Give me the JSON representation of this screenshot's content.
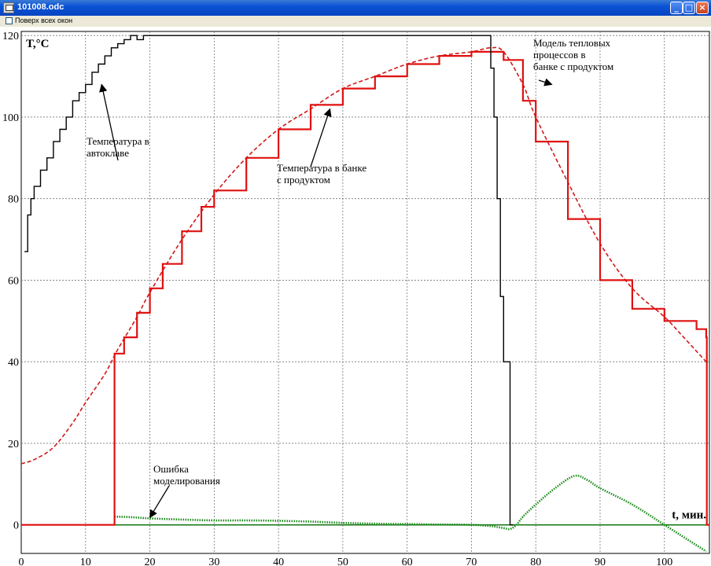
{
  "window": {
    "title": "101008.odc",
    "minimize_glyph": "_",
    "maximize_glyph": "□",
    "close_glyph": "×"
  },
  "toolbar": {
    "always_on_top_label": "Поверх всех окон",
    "always_on_top_checked": false
  },
  "chart_data": {
    "type": "line",
    "ylabel": "T,°C",
    "xlabel": "t, мин.",
    "xlim": [
      0,
      107
    ],
    "ylim": [
      -7,
      121
    ],
    "x_ticks": [
      0,
      10,
      20,
      30,
      40,
      50,
      60,
      70,
      80,
      90,
      100
    ],
    "y_ticks": [
      0,
      20,
      40,
      60,
      80,
      100,
      120
    ],
    "grid": true,
    "colors": {
      "autoclave": "#000000",
      "product": "#e01010",
      "model": "#d01818",
      "error": "#1a8a1a",
      "zero_line": "#1a7a1a"
    },
    "series": [
      {
        "id": "autoclave",
        "style": "step",
        "x": [
          0.5,
          1,
          1.5,
          2,
          3,
          4,
          5,
          6,
          7,
          8,
          9,
          10,
          11,
          12,
          13,
          14,
          15,
          16,
          17,
          18,
          19,
          20,
          22,
          25,
          30,
          35,
          40,
          45,
          50,
          55,
          60,
          65,
          70,
          72.5,
          73,
          73.5,
          74,
          74.5,
          75,
          75.5,
          76,
          76.5
        ],
        "y": [
          67,
          76,
          80,
          83,
          87,
          90,
          94,
          97,
          100,
          104,
          106,
          108,
          111,
          113,
          115,
          117,
          118,
          119,
          120,
          119,
          120,
          120,
          120,
          120,
          120,
          120,
          120,
          120,
          120,
          120,
          120,
          120,
          120,
          120,
          112,
          100,
          80,
          56,
          40,
          40,
          0,
          0
        ]
      },
      {
        "id": "product",
        "style": "step",
        "x": [
          0,
          14.4,
          14.5,
          16,
          18,
          20,
          22,
          25,
          28,
          30,
          35,
          40,
          45,
          50,
          55,
          60,
          65,
          70,
          73,
          75,
          78,
          80,
          85,
          90,
          95,
          100,
          105,
          106.5,
          106.6,
          107
        ],
        "y": [
          0,
          0,
          42,
          46,
          52,
          58,
          64,
          72,
          78,
          82,
          90,
          97,
          103,
          107,
          110,
          113,
          115,
          116,
          116,
          114,
          104,
          94,
          75,
          60,
          53,
          50,
          48,
          46,
          0,
          0
        ]
      },
      {
        "id": "model",
        "style": "dashed",
        "x": [
          0,
          2,
          5,
          8,
          10,
          13,
          15,
          18,
          20,
          25,
          30,
          35,
          40,
          45,
          50,
          55,
          60,
          65,
          70,
          73,
          75,
          78,
          80,
          85,
          90,
          95,
          100,
          103,
          106.5
        ],
        "y": [
          15,
          16,
          19,
          25,
          30,
          37,
          43,
          51,
          57,
          70,
          81,
          90,
          97,
          102,
          107,
          110,
          113,
          115,
          116,
          117,
          116,
          108,
          100,
          84,
          69,
          58,
          51,
          46,
          40
        ]
      },
      {
        "id": "error",
        "style": "dotted",
        "x": [
          14.5,
          15,
          17,
          20,
          25,
          30,
          35,
          40,
          45,
          50,
          55,
          60,
          65,
          70,
          73,
          75,
          76,
          77,
          78,
          80,
          83,
          86,
          88,
          90,
          95,
          100,
          103,
          106.5
        ],
        "y": [
          2,
          2,
          1.9,
          1.6,
          1.3,
          1.1,
          1.1,
          1,
          0.8,
          0.5,
          0.3,
          0.2,
          0.1,
          0,
          -0.3,
          -0.8,
          -1,
          0,
          2,
          5,
          9,
          12,
          11,
          9,
          5,
          0,
          -3,
          -6.5
        ]
      }
    ],
    "annotations": [
      {
        "id": "autoclave",
        "lines": [
          "Температура в",
          "автоклаве"
        ],
        "target": [
          12.5,
          108
        ]
      },
      {
        "id": "product",
        "lines": [
          "Температура в банке",
          "с продуктом"
        ],
        "target": [
          48,
          102
        ]
      },
      {
        "id": "model",
        "lines": [
          "Модель тепловых",
          "процессов в",
          "банке с продуктом"
        ],
        "target": [
          82.5,
          108
        ]
      },
      {
        "id": "error",
        "lines": [
          "Ошибка",
          "моделирования"
        ],
        "target": [
          20,
          1.8
        ]
      }
    ]
  }
}
